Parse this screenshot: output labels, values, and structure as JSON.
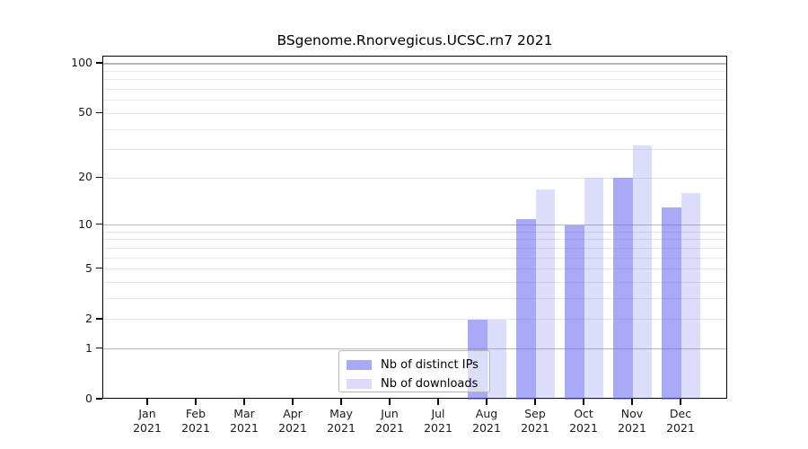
{
  "figure": {
    "background": "#ffffff"
  },
  "chart_data": {
    "type": "bar",
    "title": "BSgenome.Rnorvegicus.UCSC.rn7 2021",
    "x_tick_labels": [
      {
        "month": "Jan",
        "year": "2021"
      },
      {
        "month": "Feb",
        "year": "2021"
      },
      {
        "month": "Mar",
        "year": "2021"
      },
      {
        "month": "Apr",
        "year": "2021"
      },
      {
        "month": "May",
        "year": "2021"
      },
      {
        "month": "Jun",
        "year": "2021"
      },
      {
        "month": "Jul",
        "year": "2021"
      },
      {
        "month": "Aug",
        "year": "2021"
      },
      {
        "month": "Sep",
        "year": "2021"
      },
      {
        "month": "Oct",
        "year": "2021"
      },
      {
        "month": "Nov",
        "year": "2021"
      },
      {
        "month": "Dec",
        "year": "2021"
      }
    ],
    "series": [
      {
        "name": "Nb of distinct IPs",
        "values": [
          0,
          0,
          0,
          0,
          0,
          0,
          0,
          2,
          11,
          10,
          20,
          13
        ],
        "fill": "rgba(99,99,240,0.55)",
        "legend_color": "#a9a9f7"
      },
      {
        "name": "Nb of downloads",
        "values": [
          0,
          0,
          0,
          0,
          0,
          0,
          0,
          2,
          17,
          20,
          32,
          16
        ],
        "fill": "rgba(99,99,240,0.22)",
        "legend_color": "#dcdcfa"
      }
    ],
    "y_axis": {
      "ticks": [
        0,
        1,
        2,
        5,
        10,
        20,
        50,
        100
      ],
      "scale": "log10(1+x)",
      "range": [
        0,
        110
      ]
    },
    "gridlines": {
      "major": [
        1,
        10,
        100
      ],
      "minor": [
        2,
        3,
        4,
        5,
        6,
        7,
        8,
        9,
        20,
        30,
        40,
        50,
        60,
        70,
        80,
        90
      ],
      "major_color": "#b8b8b8",
      "minor_color": "#e7e7e7"
    },
    "legend": {
      "position": "inside-bottom-center"
    }
  }
}
